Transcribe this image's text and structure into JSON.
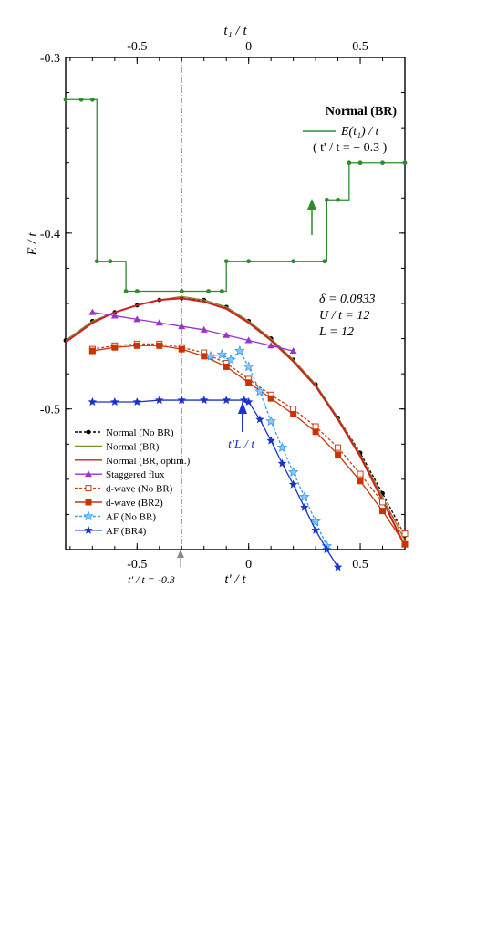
{
  "chart_data": {
    "type": "line",
    "xlabel": "t' / t",
    "ylabel": "E / t",
    "top_xlabel": "t₁ / t",
    "xlim": [
      -0.82,
      0.7
    ],
    "ylim": [
      -0.58,
      -0.3
    ],
    "xticks": [
      "-0.5",
      "0",
      "0.5"
    ],
    "yticks": [
      "-0.3",
      "-0.4",
      "-0.5"
    ],
    "xtick_values": [
      -0.5,
      0,
      0.5
    ],
    "ytick_values": [
      -0.3,
      -0.4,
      -0.5
    ],
    "top_xticks": [
      "-0.5",
      "0",
      "0.5"
    ],
    "legend_position": "bottom-left",
    "annotations": {
      "inset_title": "Normal (BR)",
      "inset_line_label": "E(t₁) / t",
      "inset_condition": "( t' / t = − 0.3 )",
      "params": [
        "δ = 0.0833",
        "U / t = 12",
        "L = 12"
      ],
      "tL_label": "t'L / t",
      "bottom_marker": "t' / t = -0.3"
    },
    "series": [
      {
        "name": "Normal (No BR)",
        "color": "#000000",
        "dash": "3,2",
        "marker": "dot",
        "x": [
          -0.82,
          -0.7,
          -0.6,
          -0.5,
          -0.4,
          -0.3,
          -0.2,
          -0.1,
          0,
          0.1,
          0.2,
          0.3,
          0.4,
          0.5,
          0.6,
          0.7
        ],
        "y": [
          -0.461,
          -0.45,
          -0.445,
          -0.441,
          -0.438,
          -0.437,
          -0.438,
          -0.442,
          -0.45,
          -0.46,
          -0.472,
          -0.486,
          -0.505,
          -0.525,
          -0.548,
          -0.572
        ]
      },
      {
        "name": "Normal (BR)",
        "color": "#8a8a2a",
        "dash": "",
        "marker": "none",
        "x": [
          -0.82,
          -0.7,
          -0.6,
          -0.5,
          -0.4,
          -0.3,
          -0.2,
          -0.1,
          0,
          0.1,
          0.2,
          0.3,
          0.4,
          0.5,
          0.6,
          0.7
        ],
        "y": [
          -0.461,
          -0.45,
          -0.445,
          -0.441,
          -0.438,
          -0.436,
          -0.438,
          -0.442,
          -0.45,
          -0.46,
          -0.472,
          -0.486,
          -0.505,
          -0.526,
          -0.55,
          -0.575
        ]
      },
      {
        "name": "Normal (BR, optim.)",
        "color": "#cc2020",
        "dash": "",
        "marker": "none",
        "x": [
          -0.82,
          -0.7,
          -0.6,
          -0.5,
          -0.4,
          -0.3,
          -0.2,
          -0.1,
          0,
          0.1,
          0.2,
          0.3,
          0.4,
          0.5,
          0.6,
          0.7
        ],
        "y": [
          -0.462,
          -0.451,
          -0.445,
          -0.441,
          -0.438,
          -0.437,
          -0.439,
          -0.443,
          -0.451,
          -0.461,
          -0.473,
          -0.487,
          -0.506,
          -0.527,
          -0.552,
          -0.578
        ]
      },
      {
        "name": "Staggered flux",
        "color": "#9933cc",
        "dash": "",
        "marker": "triangle",
        "x": [
          -0.7,
          -0.6,
          -0.5,
          -0.4,
          -0.3,
          -0.2,
          -0.1,
          0,
          0.1,
          0.2
        ],
        "y": [
          -0.445,
          -0.447,
          -0.449,
          -0.451,
          -0.453,
          -0.455,
          -0.458,
          -0.461,
          -0.464,
          -0.467
        ]
      },
      {
        "name": "d-wave (No BR)",
        "color": "#c04018",
        "dash": "3,2",
        "marker": "square-open",
        "x": [
          -0.7,
          -0.6,
          -0.5,
          -0.4,
          -0.3,
          -0.2,
          -0.1,
          0,
          0.1,
          0.2,
          0.3,
          0.4,
          0.5,
          0.6,
          0.7
        ],
        "y": [
          -0.466,
          -0.464,
          -0.463,
          -0.463,
          -0.465,
          -0.468,
          -0.474,
          -0.483,
          -0.492,
          -0.5,
          -0.51,
          -0.522,
          -0.537,
          -0.553,
          -0.571
        ]
      },
      {
        "name": "d-wave (BR2)",
        "color": "#cc3300",
        "dash": "",
        "marker": "square",
        "x": [
          -0.7,
          -0.6,
          -0.5,
          -0.4,
          -0.3,
          -0.2,
          -0.1,
          0,
          0.1,
          0.2,
          0.3,
          0.4,
          0.5,
          0.6,
          0.7
        ],
        "y": [
          -0.467,
          -0.465,
          -0.464,
          -0.464,
          -0.466,
          -0.47,
          -0.476,
          -0.485,
          -0.494,
          -0.503,
          -0.513,
          -0.526,
          -0.541,
          -0.558,
          -0.577
        ]
      },
      {
        "name": "AF (No BR)",
        "color": "#3399ee",
        "dash": "3,2",
        "marker": "star-open",
        "x": [
          -0.17,
          -0.12,
          -0.08,
          -0.04,
          0,
          0.05,
          0.1,
          0.15,
          0.2,
          0.25,
          0.3,
          0.35
        ],
        "y": [
          -0.47,
          -0.469,
          -0.472,
          -0.467,
          -0.476,
          -0.49,
          -0.507,
          -0.522,
          -0.536,
          -0.55,
          -0.564,
          -0.578
        ]
      },
      {
        "name": "AF (BR4)",
        "color": "#1a33cc",
        "dash": "",
        "marker": "star",
        "x": [
          -0.7,
          -0.6,
          -0.5,
          -0.4,
          -0.3,
          -0.2,
          -0.1,
          -0.02,
          0,
          0.05,
          0.1,
          0.15,
          0.2,
          0.25,
          0.3,
          0.35,
          0.4
        ],
        "y": [
          -0.496,
          -0.496,
          -0.496,
          -0.495,
          -0.495,
          -0.495,
          -0.495,
          -0.495,
          -0.496,
          -0.506,
          -0.518,
          -0.531,
          -0.543,
          -0.556,
          -0.569,
          -0.58,
          -0.59
        ]
      },
      {
        "name": "E(t₁) / t",
        "color": "#2e8b2e",
        "dash": "",
        "marker": "dot",
        "x": [
          -0.82,
          -0.75,
          -0.7,
          -0.68,
          -0.62,
          -0.55,
          -0.5,
          -0.3,
          -0.18,
          -0.12,
          -0.1,
          0,
          0.2,
          0.34,
          0.35,
          0.4,
          0.45,
          0.5,
          0.6,
          0.7
        ],
        "y": [
          -0.324,
          -0.324,
          -0.324,
          -0.416,
          -0.416,
          -0.433,
          -0.433,
          -0.433,
          -0.433,
          -0.433,
          -0.416,
          -0.416,
          -0.416,
          -0.416,
          -0.381,
          -0.381,
          -0.36,
          -0.36,
          -0.36,
          -0.36
        ]
      }
    ]
  }
}
